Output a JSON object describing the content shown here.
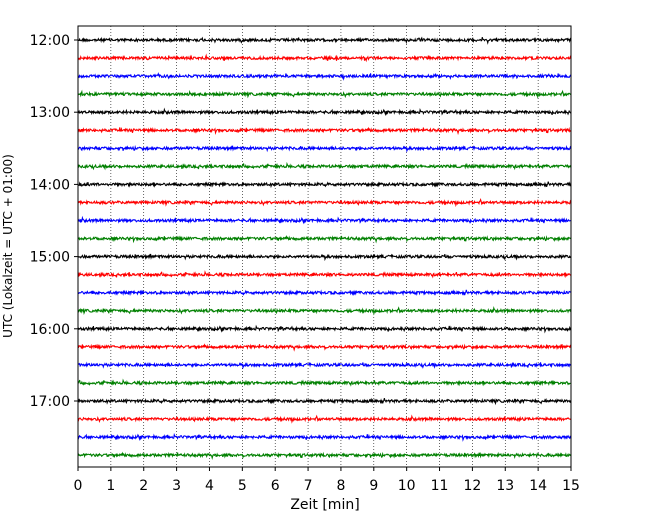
{
  "chart_data": {
    "type": "line",
    "title": "",
    "xlabel": "Zeit  [min]",
    "ylabel": "UTC (Lokalzeit = UTC + 01:00)",
    "xlim": [
      0,
      15
    ],
    "x_ticks": [
      0,
      1,
      2,
      3,
      4,
      5,
      6,
      7,
      8,
      9,
      10,
      11,
      12,
      13,
      14,
      15
    ],
    "x_tick_labels": [
      "0",
      "1",
      "2",
      "3",
      "4",
      "5",
      "6",
      "7",
      "8",
      "9",
      "10",
      "11",
      "12",
      "13",
      "14",
      "15"
    ],
    "y_tick_labels": [
      "12:00",
      "13:00",
      "14:00",
      "15:00",
      "16:00",
      "17:00"
    ],
    "grid": "vertical dotted at each minute",
    "trace_minutes": 15,
    "traces_per_hour": 4,
    "trace_colors": [
      "#000000",
      "#ff0000",
      "#0000ff",
      "#008000"
    ],
    "traces": [
      {
        "start": "12:00",
        "color": "#000000"
      },
      {
        "start": "12:15",
        "color": "#ff0000"
      },
      {
        "start": "12:30",
        "color": "#0000ff"
      },
      {
        "start": "12:45",
        "color": "#008000"
      },
      {
        "start": "13:00",
        "color": "#000000"
      },
      {
        "start": "13:15",
        "color": "#ff0000"
      },
      {
        "start": "13:30",
        "color": "#0000ff"
      },
      {
        "start": "13:45",
        "color": "#008000"
      },
      {
        "start": "14:00",
        "color": "#000000"
      },
      {
        "start": "14:15",
        "color": "#ff0000"
      },
      {
        "start": "14:30",
        "color": "#0000ff"
      },
      {
        "start": "14:45",
        "color": "#008000"
      },
      {
        "start": "15:00",
        "color": "#000000"
      },
      {
        "start": "15:15",
        "color": "#ff0000"
      },
      {
        "start": "15:30",
        "color": "#0000ff"
      },
      {
        "start": "15:45",
        "color": "#008000"
      },
      {
        "start": "16:00",
        "color": "#000000"
      },
      {
        "start": "16:15",
        "color": "#ff0000"
      },
      {
        "start": "16:30",
        "color": "#0000ff"
      },
      {
        "start": "16:45",
        "color": "#008000"
      },
      {
        "start": "17:00",
        "color": "#000000"
      },
      {
        "start": "17:15",
        "color": "#ff0000"
      },
      {
        "start": "17:30",
        "color": "#0000ff"
      },
      {
        "start": "17:45",
        "color": "#008000"
      }
    ]
  }
}
